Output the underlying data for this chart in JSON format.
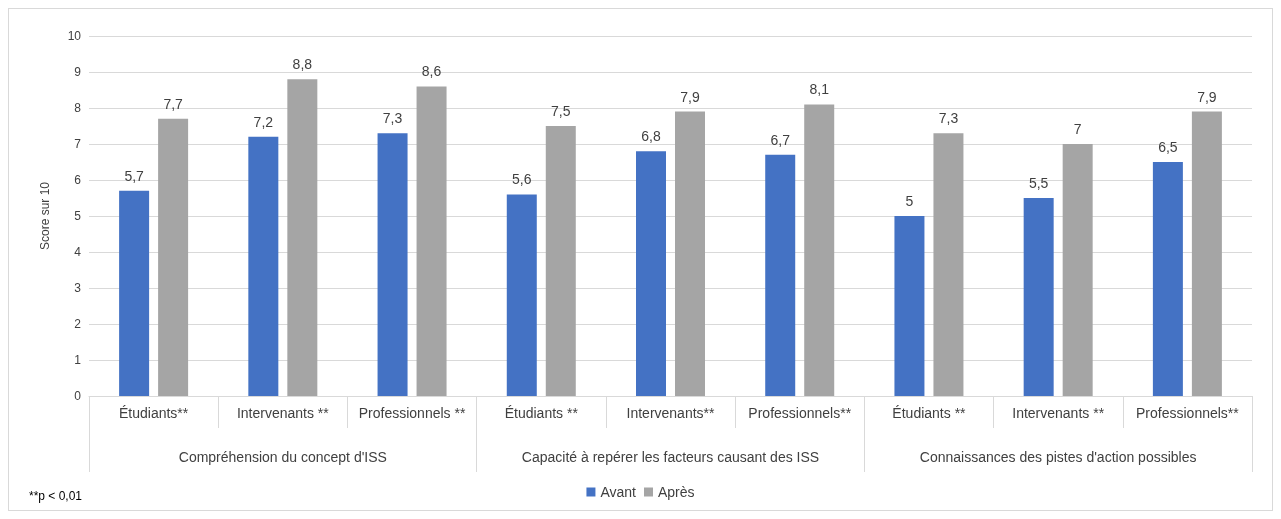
{
  "chart_data": {
    "type": "bar",
    "ylabel": "Score sur 10",
    "categories": [
      "Étudiants**",
      "Intervenants **",
      "Professionnels **",
      "Étudiants **",
      "Intervenants**",
      "Professionnels**",
      "Étudiants **",
      "Intervenants **",
      "Professionnels**"
    ],
    "series": [
      {
        "name": "Avant",
        "color": "#4472c4",
        "values": [
          5.7,
          7.2,
          7.3,
          5.6,
          6.8,
          6.7,
          5,
          5.5,
          6.5
        ],
        "value_labels": [
          "5,7",
          "7,2",
          "7,3",
          "5,6",
          "6,8",
          "6,7",
          "5",
          "5,5",
          "6,5"
        ]
      },
      {
        "name": "Après",
        "color": "#a5a5a5",
        "values": [
          7.7,
          8.8,
          8.6,
          7.5,
          7.9,
          8.1,
          7.3,
          7,
          7.9
        ],
        "value_labels": [
          "7,7",
          "8,8",
          "8,6",
          "7,5",
          "7,9",
          "8,1",
          "7,3",
          "7",
          "7,9"
        ]
      }
    ],
    "ylim": [
      0,
      10
    ],
    "yticks": [
      0,
      1,
      2,
      3,
      4,
      5,
      6,
      7,
      8,
      9,
      10
    ],
    "grid": "y",
    "legend": "bottom",
    "annotations": [
      "Compréhension du concept d'ISS",
      "Capacité à repérer les facteurs causant des ISS",
      "Connaissances des pistes d'action possibles",
      "**p < 0,01"
    ]
  }
}
